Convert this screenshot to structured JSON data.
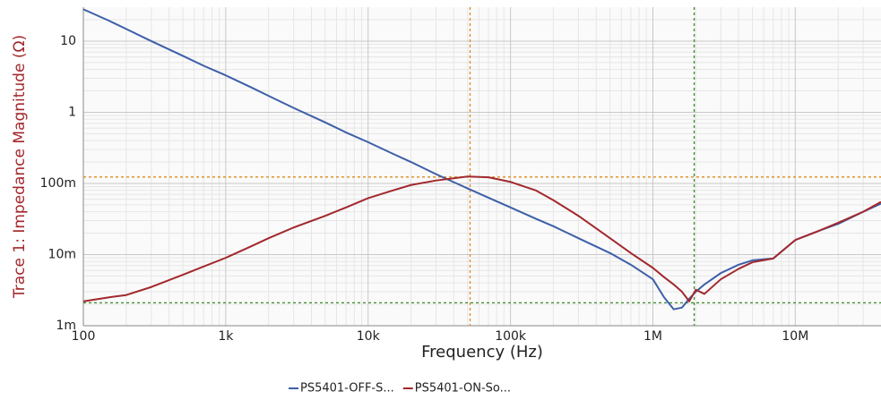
{
  "chart_data": {
    "type": "line",
    "x_label": "Frequency (Hz)",
    "y_label": "Trace 1: Impedance Magnitude (Ω)",
    "log_x": true,
    "log_y": true,
    "grid": true,
    "minor_grid": true,
    "legend": "bottom",
    "xlim": [
      100,
      40000000
    ],
    "ylim": [
      0.001,
      30
    ],
    "xticks": [
      100,
      {
        "value": 1000,
        "label": "1k"
      },
      {
        "value": 10000,
        "label": "10k"
      },
      {
        "value": 100000,
        "label": "100k"
      },
      {
        "value": 1000000,
        "label": "1M"
      },
      {
        "value": 10000000,
        "label": "10M"
      }
    ],
    "yticks": [
      {
        "value": 0.001,
        "label": "1m"
      },
      {
        "value": 0.01,
        "label": "10m"
      },
      {
        "value": 0.1,
        "label": "100m"
      },
      1,
      10
    ],
    "x": [
      100,
      150,
      200,
      300,
      500,
      700,
      1000,
      1500,
      2000,
      3000,
      5000,
      7000,
      10000,
      15000,
      20000,
      30000,
      50000,
      70000,
      100000,
      150000,
      200000,
      300000,
      500000,
      700000,
      1000000,
      1200000,
      1400000,
      1600000,
      1800000,
      2000000,
      2300000,
      3000000,
      4000000,
      5000000,
      7000000,
      10000000,
      15000000,
      20000000,
      30000000,
      40000000
    ],
    "series": [
      {
        "name": "PS5401-OFF-S...",
        "color": "#3d5fa8",
        "values": [
          28,
          19.5,
          14.8,
          10,
          6.2,
          4.5,
          3.3,
          2.25,
          1.7,
          1.15,
          0.72,
          0.52,
          0.38,
          0.26,
          0.2,
          0.135,
          0.085,
          0.063,
          0.046,
          0.032,
          0.025,
          0.017,
          0.0105,
          0.0072,
          0.0045,
          0.0025,
          0.0017,
          0.0018,
          0.0024,
          0.003,
          0.0038,
          0.0055,
          0.0072,
          0.0083,
          0.0088,
          0.016,
          0.022,
          0.027,
          0.04,
          0.052
        ]
      },
      {
        "name": "PS5401-ON-So...",
        "color": "#a2282d",
        "values": [
          0.0022,
          0.0025,
          0.0027,
          0.0035,
          0.0052,
          0.0068,
          0.009,
          0.013,
          0.017,
          0.024,
          0.035,
          0.046,
          0.062,
          0.08,
          0.095,
          0.11,
          0.125,
          0.122,
          0.105,
          0.08,
          0.058,
          0.035,
          0.017,
          0.0105,
          0.0065,
          0.0048,
          0.0038,
          0.003,
          0.0022,
          0.0032,
          0.0028,
          0.0045,
          0.0063,
          0.0078,
          0.0088,
          0.016,
          0.022,
          0.028,
          0.04,
          0.055
        ]
      }
    ],
    "cursors": [
      {
        "x": 52000,
        "y": 0.123,
        "color": "#e08a1e"
      },
      {
        "x": 1950000,
        "y": 0.0021,
        "color": "#3a8a2a"
      }
    ]
  }
}
